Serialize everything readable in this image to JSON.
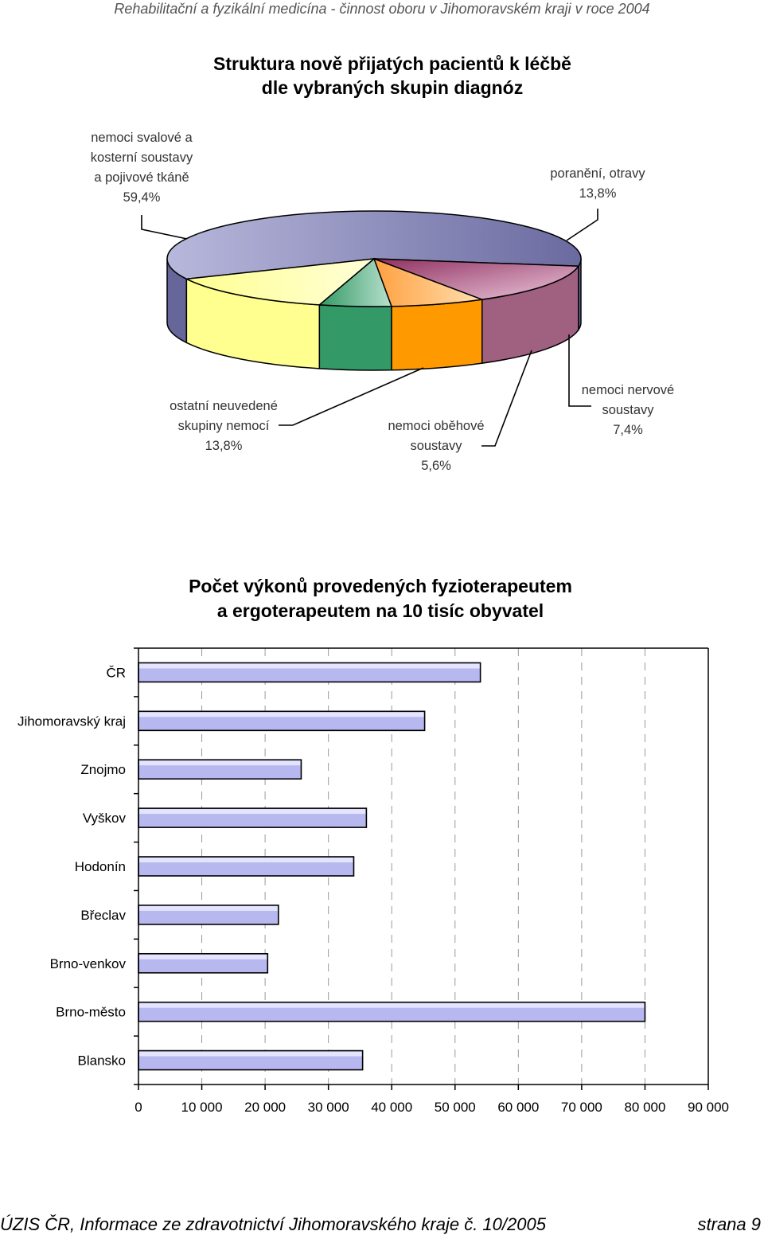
{
  "page": {
    "header": "Rehabilitační a fyzikální medicína - činnost oboru v Jihomoravském kraji v roce 2004",
    "footer_left": "ÚZIS ČR, Informace ze zdravotnictví Jihomoravského kraje č. 10/2005",
    "footer_right": "strana 9"
  },
  "chart_data": [
    {
      "type": "pie",
      "title_lines": [
        "Struktura nově přijatých pacientů k léčbě",
        "dle vybraných skupin diagnóz"
      ],
      "slices": [
        {
          "label_lines": [
            "nemoci svalové a",
            "kosterní soustavy",
            "a pojivové tkáně"
          ],
          "value": 59.4,
          "value_text": "59,4%",
          "color": "#8f8fc0"
        },
        {
          "label_lines": [
            "poranění, otravy"
          ],
          "value": 13.8,
          "value_text": "13,8%",
          "color": "#c890ac"
        },
        {
          "label_lines": [
            "nemoci nervové",
            "soustavy"
          ],
          "value": 7.4,
          "value_text": "7,4%",
          "color": "#ffb050"
        },
        {
          "label_lines": [
            "nemoci oběhové",
            "soustavy"
          ],
          "value": 5.6,
          "value_text": "5,6%",
          "color": "#70c090"
        },
        {
          "label_lines": [
            "ostatní neuvedené",
            "skupiny nemocí"
          ],
          "value": 13.8,
          "value_text": "13,8%",
          "color": "#ffffa0"
        }
      ]
    },
    {
      "type": "bar",
      "orientation": "horizontal",
      "title_lines": [
        "Počet výkonů provedených fyzioterapeutem",
        "a ergoterapeutem na 10 tisíc obyvatel"
      ],
      "categories": [
        "ČR",
        "Jihomoravský kraj",
        "Znojmo",
        "Vyškov",
        "Hodonín",
        "Břeclav",
        "Brno-venkov",
        "Brno-město",
        "Blansko"
      ],
      "values": [
        54000,
        45200,
        25700,
        36000,
        34000,
        22100,
        20400,
        80000,
        35400
      ],
      "xlim": [
        0,
        90000
      ],
      "ticks": [
        0,
        10000,
        20000,
        30000,
        40000,
        50000,
        60000,
        70000,
        80000,
        90000
      ],
      "tick_labels": [
        "0",
        "10 000",
        "20 000",
        "30 000",
        "40 000",
        "50 000",
        "60 000",
        "70 000",
        "80 000",
        "90 000"
      ],
      "grid": "vertical-dashed",
      "bar_color": "#b8b8f0"
    }
  ]
}
